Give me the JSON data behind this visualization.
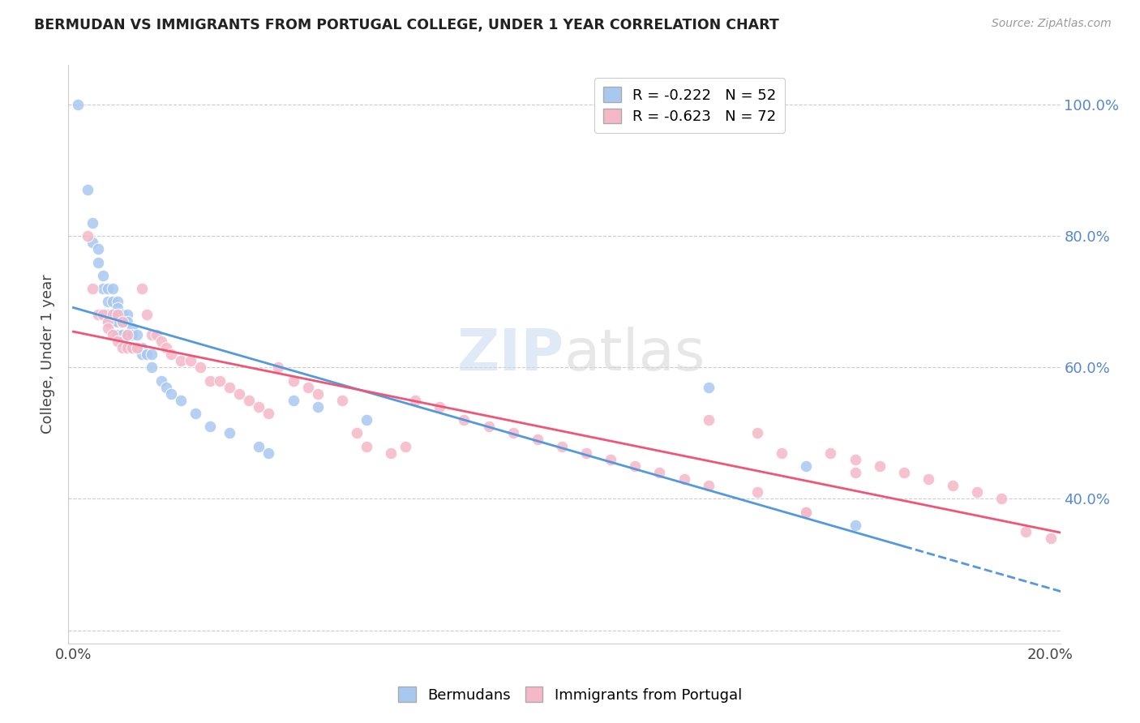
{
  "title": "BERMUDAN VS IMMIGRANTS FROM PORTUGAL COLLEGE, UNDER 1 YEAR CORRELATION CHART",
  "source": "Source: ZipAtlas.com",
  "ylabel": "College, Under 1 year",
  "xlim": [
    -0.001,
    0.202
  ],
  "ylim": [
    0.18,
    1.06
  ],
  "bermuda_R": -0.222,
  "bermuda_N": 52,
  "portugal_R": -0.623,
  "portugal_N": 72,
  "bermuda_color": "#a8c8f0",
  "portugal_color": "#f5b8c8",
  "bermuda_line_color": "#5599dd",
  "portugal_line_color": "#ee5577",
  "watermark_text": "ZIPatlas",
  "bermuda_x": [
    0.001,
    0.003,
    0.004,
    0.004,
    0.005,
    0.005,
    0.006,
    0.006,
    0.007,
    0.007,
    0.007,
    0.007,
    0.008,
    0.008,
    0.008,
    0.008,
    0.009,
    0.009,
    0.009,
    0.009,
    0.01,
    0.01,
    0.01,
    0.01,
    0.011,
    0.011,
    0.011,
    0.012,
    0.012,
    0.012,
    0.013,
    0.013,
    0.014,
    0.014,
    0.015,
    0.016,
    0.016,
    0.018,
    0.019,
    0.02,
    0.022,
    0.025,
    0.028,
    0.032,
    0.038,
    0.04,
    0.045,
    0.05,
    0.06,
    0.13,
    0.15,
    0.16
  ],
  "bermuda_y": [
    1.0,
    0.87,
    0.82,
    0.79,
    0.78,
    0.76,
    0.74,
    0.72,
    0.72,
    0.7,
    0.68,
    0.67,
    0.72,
    0.7,
    0.68,
    0.67,
    0.7,
    0.69,
    0.67,
    0.65,
    0.68,
    0.67,
    0.65,
    0.64,
    0.68,
    0.67,
    0.65,
    0.66,
    0.65,
    0.63,
    0.65,
    0.63,
    0.63,
    0.62,
    0.62,
    0.62,
    0.6,
    0.58,
    0.57,
    0.56,
    0.55,
    0.53,
    0.51,
    0.5,
    0.48,
    0.47,
    0.55,
    0.54,
    0.52,
    0.57,
    0.45,
    0.36
  ],
  "portugal_x": [
    0.003,
    0.004,
    0.005,
    0.006,
    0.007,
    0.007,
    0.008,
    0.008,
    0.009,
    0.009,
    0.01,
    0.01,
    0.011,
    0.011,
    0.012,
    0.013,
    0.014,
    0.015,
    0.016,
    0.017,
    0.018,
    0.019,
    0.02,
    0.022,
    0.024,
    0.026,
    0.028,
    0.03,
    0.032,
    0.034,
    0.036,
    0.038,
    0.04,
    0.042,
    0.045,
    0.048,
    0.05,
    0.055,
    0.058,
    0.06,
    0.065,
    0.068,
    0.07,
    0.075,
    0.08,
    0.085,
    0.09,
    0.095,
    0.1,
    0.105,
    0.11,
    0.115,
    0.12,
    0.125,
    0.13,
    0.14,
    0.145,
    0.15,
    0.155,
    0.16,
    0.165,
    0.17,
    0.175,
    0.18,
    0.185,
    0.19,
    0.195,
    0.2,
    0.13,
    0.14,
    0.15,
    0.16
  ],
  "portugal_y": [
    0.8,
    0.72,
    0.68,
    0.68,
    0.67,
    0.66,
    0.68,
    0.65,
    0.68,
    0.64,
    0.67,
    0.63,
    0.65,
    0.63,
    0.63,
    0.63,
    0.72,
    0.68,
    0.65,
    0.65,
    0.64,
    0.63,
    0.62,
    0.61,
    0.61,
    0.6,
    0.58,
    0.58,
    0.57,
    0.56,
    0.55,
    0.54,
    0.53,
    0.6,
    0.58,
    0.57,
    0.56,
    0.55,
    0.5,
    0.48,
    0.47,
    0.48,
    0.55,
    0.54,
    0.52,
    0.51,
    0.5,
    0.49,
    0.48,
    0.47,
    0.46,
    0.45,
    0.44,
    0.43,
    0.52,
    0.5,
    0.47,
    0.38,
    0.47,
    0.46,
    0.45,
    0.44,
    0.43,
    0.42,
    0.41,
    0.4,
    0.35,
    0.34,
    0.42,
    0.41,
    0.38,
    0.44
  ]
}
